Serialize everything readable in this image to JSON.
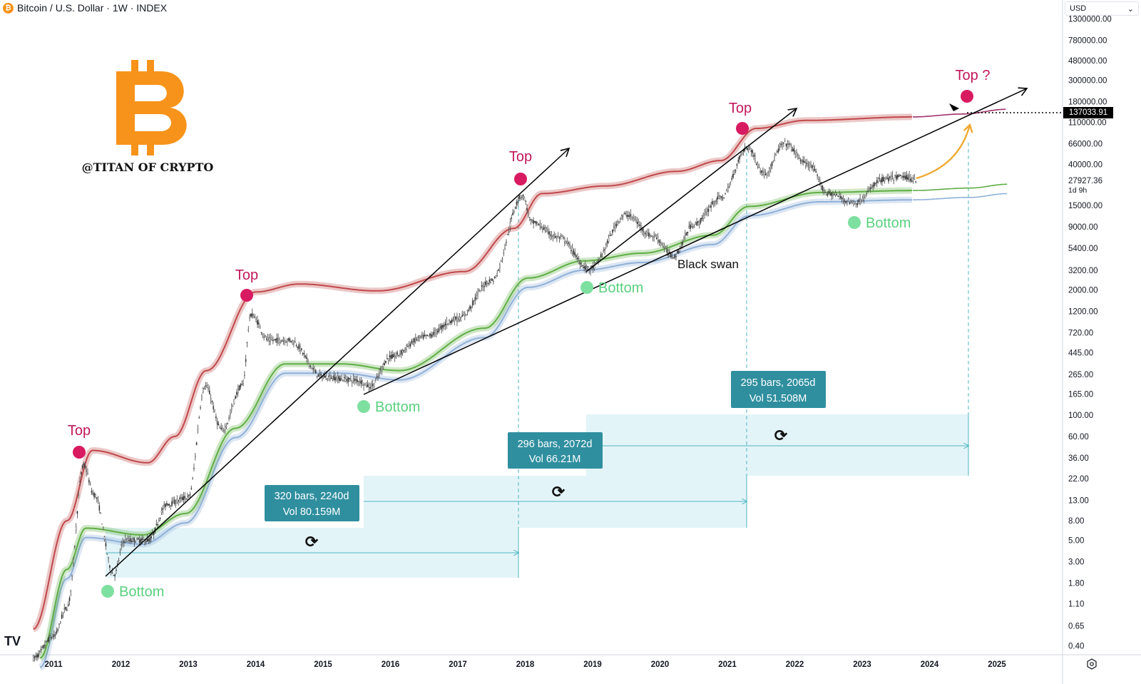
{
  "header": {
    "title": "Bitcoin / U.S. Dollar · 1W · INDEX",
    "coin_icon": "bitcoin-icon"
  },
  "currency_select": {
    "value": "USD"
  },
  "logo": {
    "symbol": "B",
    "handle": "@TITAN OF CRYPTO"
  },
  "colors": {
    "logo": "#f7931a",
    "top": "#d81b60",
    "bottom": "#7ee0a0",
    "red_band": "#c0484a",
    "green_band": "#5fae45",
    "blue_band": "#8fb0d8",
    "measure_fill": "#e3f4f8",
    "measure_label": "#2f8f9f",
    "arrow": "#f0a830"
  },
  "chart_data": {
    "type": "line",
    "title": "Bitcoin / U.S. Dollar · 1W · INDEX",
    "yscale": "log",
    "ylim": [
      0.3,
      1500000
    ],
    "xlim": [
      2010.6,
      2025.9
    ],
    "y_ticks": [
      "1300000.00",
      "780000.00",
      "480000.00",
      "300000.00",
      "180000.00",
      "110000.00",
      "66000.00",
      "40000.00",
      "15000.00",
      "9000.00",
      "5400.00",
      "3200.00",
      "2000.00",
      "1200.00",
      "720.00",
      "445.00",
      "265.00",
      "165.00",
      "100.00",
      "60.00",
      "36.00",
      "22.00",
      "13.00",
      "8.00",
      "5.00",
      "3.00",
      "1.80",
      "1.10",
      "0.65",
      "0.40"
    ],
    "y_tick_values": [
      1300000,
      780000,
      480000,
      300000,
      180000,
      110000,
      66000,
      40000,
      15000,
      9000,
      5400,
      3200,
      2000,
      1200,
      720,
      445,
      265,
      165,
      100,
      60,
      36,
      22,
      13,
      8,
      5,
      3,
      1.8,
      1.1,
      0.65,
      0.4
    ],
    "x_ticks": [
      "2011",
      "2012",
      "2013",
      "2014",
      "2015",
      "2016",
      "2017",
      "2018",
      "2019",
      "2020",
      "2021",
      "2022",
      "2023",
      "2024",
      "2025"
    ],
    "price_path": [
      [
        2010.7,
        0.3
      ],
      [
        2011.0,
        0.5
      ],
      [
        2011.2,
        1
      ],
      [
        2011.45,
        30
      ],
      [
        2011.6,
        15
      ],
      [
        2011.9,
        2.2
      ],
      [
        2012.05,
        5
      ],
      [
        2012.4,
        5
      ],
      [
        2012.7,
        12
      ],
      [
        2013.0,
        14
      ],
      [
        2013.25,
        200
      ],
      [
        2013.5,
        70
      ],
      [
        2013.8,
        200
      ],
      [
        2013.93,
        1100
      ],
      [
        2014.2,
        600
      ],
      [
        2014.5,
        600
      ],
      [
        2015.0,
        250
      ],
      [
        2015.5,
        230
      ],
      [
        2015.7,
        200
      ],
      [
        2016.0,
        400
      ],
      [
        2016.5,
        650
      ],
      [
        2017.0,
        1000
      ],
      [
        2017.5,
        2500
      ],
      [
        2017.96,
        19000
      ],
      [
        2018.1,
        10000
      ],
      [
        2018.5,
        7000
      ],
      [
        2018.95,
        3300
      ],
      [
        2019.5,
        12000
      ],
      [
        2019.9,
        7200
      ],
      [
        2020.2,
        4500
      ],
      [
        2020.5,
        9500
      ],
      [
        2020.9,
        18000
      ],
      [
        2021.3,
        60000
      ],
      [
        2021.55,
        32000
      ],
      [
        2021.85,
        66000
      ],
      [
        2022.2,
        40000
      ],
      [
        2022.5,
        20000
      ],
      [
        2022.9,
        16000
      ],
      [
        2023.3,
        28000
      ],
      [
        2023.6,
        30000
      ],
      [
        2023.8,
        27927
      ]
    ],
    "upper_band": [
      [
        2010.7,
        0.6
      ],
      [
        2011.2,
        8
      ],
      [
        2011.58,
        43
      ],
      [
        2012.4,
        32
      ],
      [
        2012.8,
        60
      ],
      [
        2013.27,
        290
      ],
      [
        2014.0,
        1900
      ],
      [
        2014.65,
        2300
      ],
      [
        2015.8,
        1950
      ],
      [
        2017.1,
        3100
      ],
      [
        2017.83,
        8700
      ],
      [
        2018.25,
        20000
      ],
      [
        2019.2,
        24000
      ],
      [
        2020.25,
        34000
      ],
      [
        2020.9,
        44000
      ],
      [
        2021.43,
        95000
      ],
      [
        2022.17,
        115000
      ],
      [
        2023.75,
        125000
      ]
    ],
    "upper_band_projection": [
      [
        2023.75,
        125000
      ],
      [
        2024.5,
        134000
      ],
      [
        2025.14,
        150000
      ]
    ],
    "middle_band": [
      [
        2010.8,
        0.3
      ],
      [
        2011.2,
        2.5
      ],
      [
        2011.48,
        6.7
      ],
      [
        2012.32,
        5.7
      ],
      [
        2012.96,
        9.5
      ],
      [
        2013.7,
        73
      ],
      [
        2014.44,
        340
      ],
      [
        2015.28,
        340
      ],
      [
        2016.13,
        290
      ],
      [
        2017.4,
        800
      ],
      [
        2018.04,
        2650
      ],
      [
        2018.88,
        4000
      ],
      [
        2019.73,
        4800
      ],
      [
        2020.79,
        7400
      ],
      [
        2021.32,
        14700
      ],
      [
        2022.37,
        20500
      ],
      [
        2023.75,
        21500
      ]
    ],
    "middle_band_projection": [
      [
        2023.75,
        21500
      ],
      [
        2024.6,
        22800
      ],
      [
        2025.16,
        25000
      ]
    ],
    "lower_band_ratio": 0.8,
    "current_price": "27927.36",
    "countdown": "1d 9h",
    "projected_price": "137033.91",
    "annotations": {
      "tops": [
        "Top",
        "Top",
        "Top",
        "Top",
        "Top ?"
      ],
      "bottoms": [
        "Bottom",
        "Bottom",
        "Bottom",
        "Bottom"
      ],
      "black_swan": "Black swan"
    },
    "measurements": [
      {
        "line1": "320 bars, 2240d",
        "line2": "Vol 80.159M"
      },
      {
        "line1": "296 bars, 2072d",
        "line2": "Vol 66.21M"
      },
      {
        "line1": "295 bars, 2065d",
        "line2": "Vol 51.508M"
      }
    ]
  }
}
